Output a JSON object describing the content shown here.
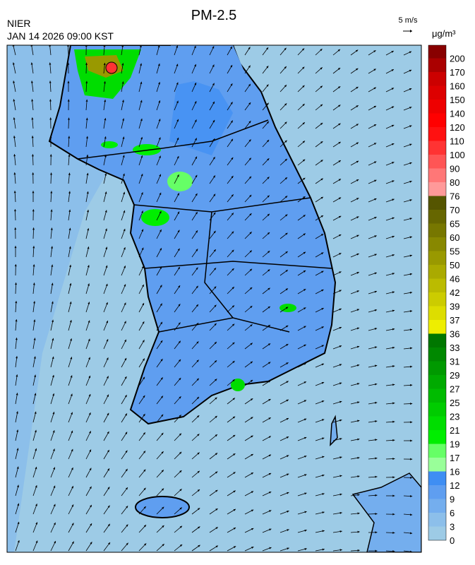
{
  "header": {
    "title": "PM-2.5",
    "agency": "NIER",
    "datetime": "JAN 14 2026 09:00 KST",
    "wind_scale": "5 m/s"
  },
  "colorbar": {
    "unit": "μg/m³",
    "labels": [
      0,
      3,
      6,
      9,
      12,
      16,
      17,
      19,
      21,
      23,
      25,
      27,
      29,
      31,
      33,
      36,
      37,
      39,
      42,
      46,
      50,
      55,
      60,
      65,
      70,
      76,
      80,
      90,
      100,
      110,
      120,
      140,
      150,
      160,
      170,
      200
    ],
    "colors": [
      "#9dcbe6",
      "#8cbfea",
      "#74aeee",
      "#5f9ef0",
      "#3f8ef3",
      "#99ff99",
      "#66ff66",
      "#00ee00",
      "#00dd00",
      "#00cc00",
      "#00bb00",
      "#00aa00",
      "#009900",
      "#008800",
      "#007700",
      "#eeee00",
      "#dddd00",
      "#cccc00",
      "#bbbb00",
      "#aaaa00",
      "#999900",
      "#888800",
      "#777700",
      "#666600",
      "#555500",
      "#ff9999",
      "#ff7777",
      "#ff5555",
      "#ff3333",
      "#ff1111",
      "#ff0000",
      "#ee0000",
      "#dd0000",
      "#cc0000",
      "#aa0000",
      "#880000"
    ]
  }
}
